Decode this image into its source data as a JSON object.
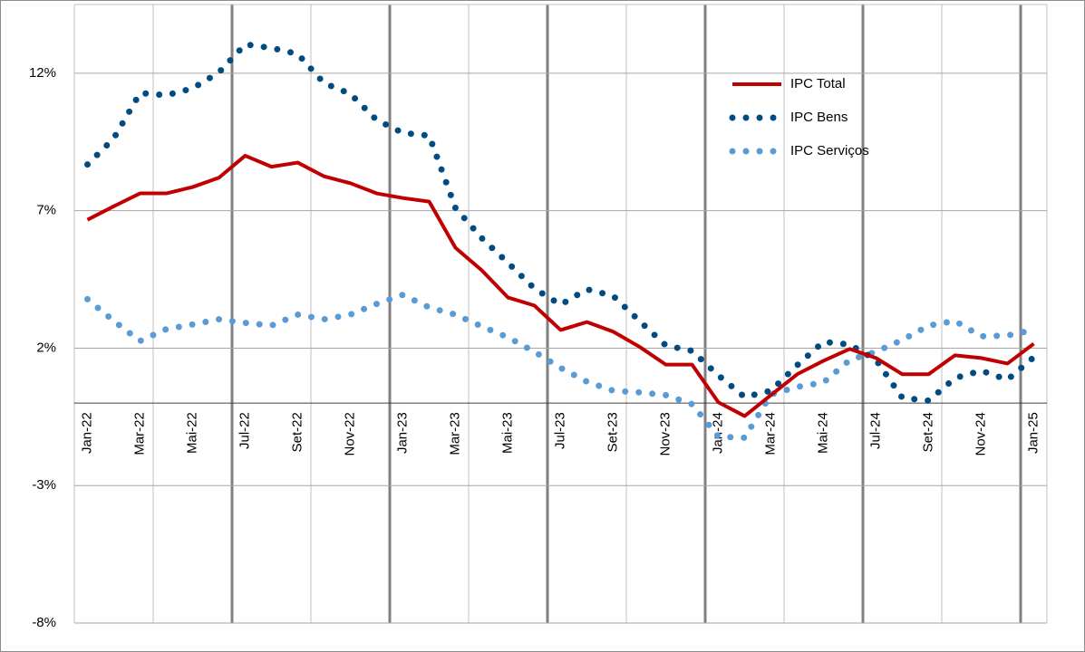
{
  "chart_data": {
    "type": "line",
    "categories": [
      "Jan-22",
      null,
      "Mar-22",
      null,
      "Mai-22",
      null,
      "Jul-22",
      null,
      "Set-22",
      null,
      "Nov-22",
      null,
      "Jan-23",
      null,
      "Mar-23",
      null,
      "Mai-23",
      null,
      "Jul-23",
      null,
      "Set-23",
      null,
      "Nov-23",
      null,
      "Jan-24",
      null,
      "Mar-24",
      null,
      "Mai-24",
      null,
      "Jul-24",
      null,
      "Set-24",
      null,
      "Nov-24",
      null,
      "Jan-25"
    ],
    "series": [
      {
        "name": "IPC Total",
        "color": "#c00000",
        "style": "solid",
        "values": [
          6.67,
          7.16,
          7.63,
          7.63,
          7.86,
          8.2,
          9.0,
          8.6,
          8.75,
          8.25,
          8.0,
          7.63,
          7.46,
          7.33,
          5.65,
          4.83,
          3.84,
          3.55,
          2.66,
          2.95,
          2.6,
          2.05,
          1.4,
          1.4,
          0.03,
          -0.47,
          0.29,
          1.05,
          1.54,
          1.97,
          1.64,
          1.05,
          1.05,
          1.74,
          1.64,
          1.44,
          2.16
        ]
      },
      {
        "name": "IPC Bens",
        "color": "#004b7f",
        "style": "dotted",
        "values": [
          8.68,
          9.63,
          11.28,
          11.2,
          11.45,
          12.03,
          13.05,
          12.92,
          12.7,
          11.64,
          11.25,
          10.3,
          9.83,
          9.73,
          7.1,
          6.0,
          5.1,
          4.17,
          3.58,
          4.14,
          3.9,
          2.99,
          2.1,
          1.9,
          1.01,
          0.22,
          0.45,
          1.38,
          2.23,
          2.13,
          1.57,
          0.19,
          0.09,
          0.91,
          1.18,
          0.85,
          1.67
        ]
      },
      {
        "name": "IPC Serviços",
        "color": "#5b9bd5",
        "style": "dotted",
        "values": [
          3.78,
          2.99,
          2.26,
          2.69,
          2.86,
          3.05,
          2.92,
          2.82,
          3.22,
          3.05,
          3.22,
          3.61,
          3.94,
          3.48,
          3.22,
          2.79,
          2.39,
          1.87,
          1.28,
          0.78,
          0.45,
          0.39,
          0.29,
          -0.04,
          -1.22,
          -1.26,
          0.32,
          0.59,
          0.75,
          1.57,
          1.87,
          2.3,
          2.82,
          2.99,
          2.43,
          2.46,
          2.66
        ]
      }
    ],
    "ylim": [
      -8,
      14.5
    ],
    "yticks": [
      {
        "value": -8,
        "label": "-8%"
      },
      {
        "value": -3,
        "label": "-3%"
      },
      {
        "value": 2,
        "label": "2%"
      },
      {
        "value": 7,
        "label": "7%"
      },
      {
        "value": 12,
        "label": "12%"
      }
    ],
    "grid": true,
    "legend": "upper right"
  }
}
